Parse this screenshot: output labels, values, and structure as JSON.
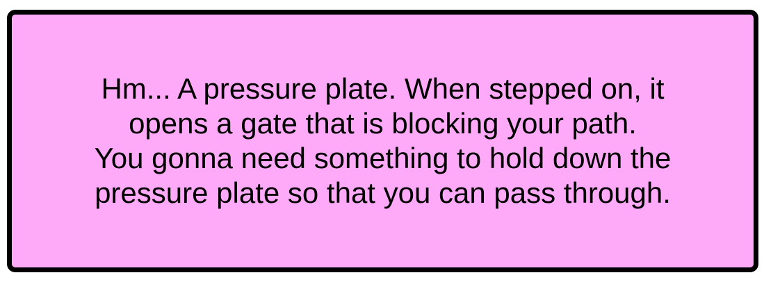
{
  "dialog": {
    "lines": [
      "Hm... A pressure plate. When stepped on, it",
      "opens a gate that is blocking your path.",
      "You gonna need something to hold down the",
      "pressure plate so that you can pass through."
    ]
  },
  "colors": {
    "box_background": "#ffaaf8",
    "box_border": "#000000",
    "text": "#000000"
  }
}
